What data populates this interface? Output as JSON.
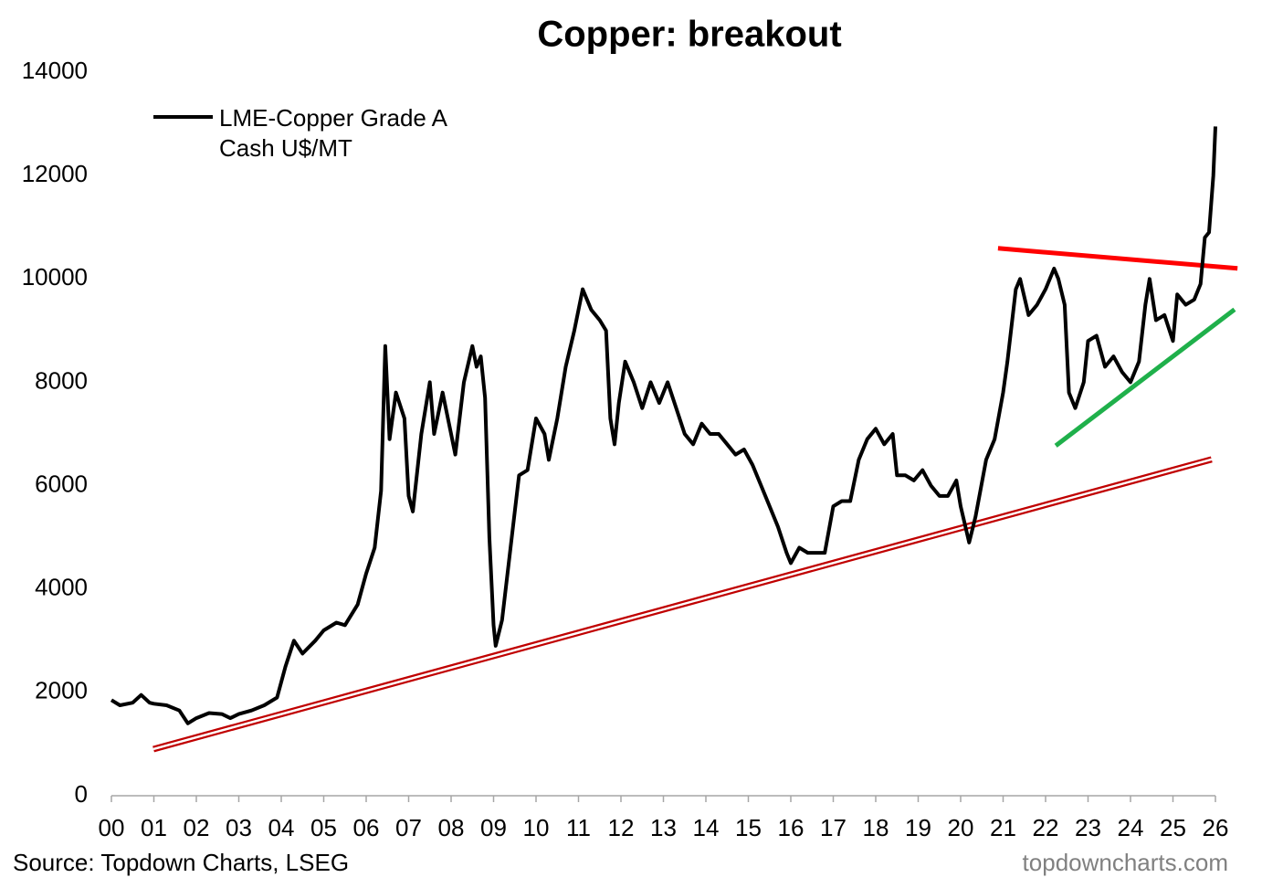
{
  "chart_data": {
    "type": "line",
    "title": "Copper: breakout",
    "source": "Source: Topdown Charts, LSEG",
    "watermark": "topdowncharts.com",
    "xlim": [
      0,
      26
    ],
    "xticks": [
      {
        "value": 0,
        "label": "00"
      },
      {
        "value": 1,
        "label": "01"
      },
      {
        "value": 2,
        "label": "02"
      },
      {
        "value": 3,
        "label": "03"
      },
      {
        "value": 4,
        "label": "04"
      },
      {
        "value": 5,
        "label": "05"
      },
      {
        "value": 6,
        "label": "06"
      },
      {
        "value": 7,
        "label": "07"
      },
      {
        "value": 8,
        "label": "08"
      },
      {
        "value": 9,
        "label": "09"
      },
      10,
      11,
      12,
      13,
      14,
      15,
      16,
      17,
      18,
      19,
      20,
      21,
      22,
      23,
      24,
      25,
      26
    ],
    "ylim": [
      0,
      14000
    ],
    "yticks": [
      0,
      2000,
      4000,
      6000,
      8000,
      10000,
      12000,
      14000
    ],
    "x": [
      0.0,
      0.2,
      0.5,
      0.7,
      0.9,
      1.0,
      1.3,
      1.6,
      1.8,
      2.0,
      2.3,
      2.6,
      2.8,
      3.0,
      3.3,
      3.6,
      3.9,
      4.1,
      4.3,
      4.5,
      4.8,
      5.0,
      5.3,
      5.5,
      5.8,
      6.0,
      6.2,
      6.35,
      6.45,
      6.55,
      6.7,
      6.9,
      7.0,
      7.1,
      7.3,
      7.5,
      7.6,
      7.8,
      8.0,
      8.1,
      8.3,
      8.5,
      8.6,
      8.7,
      8.8,
      8.9,
      9.0,
      9.05,
      9.2,
      9.4,
      9.6,
      9.8,
      10.0,
      10.2,
      10.3,
      10.5,
      10.7,
      10.9,
      11.1,
      11.3,
      11.5,
      11.65,
      11.75,
      11.85,
      11.95,
      12.1,
      12.3,
      12.5,
      12.7,
      12.9,
      13.1,
      13.3,
      13.5,
      13.7,
      13.9,
      14.1,
      14.3,
      14.5,
      14.7,
      14.9,
      15.1,
      15.3,
      15.5,
      15.7,
      15.9,
      16.0,
      16.2,
      16.4,
      16.6,
      16.8,
      17.0,
      17.2,
      17.4,
      17.6,
      17.8,
      18.0,
      18.2,
      18.4,
      18.5,
      18.7,
      18.9,
      19.1,
      19.3,
      19.5,
      19.7,
      19.9,
      20.0,
      20.2,
      20.35,
      20.6,
      20.8,
      21.0,
      21.1,
      21.3,
      21.4,
      21.6,
      21.8,
      22.0,
      22.2,
      22.3,
      22.45,
      22.55,
      22.7,
      22.9,
      23.0,
      23.2,
      23.4,
      23.6,
      23.8,
      24.0,
      24.2,
      24.35,
      24.45,
      24.6,
      24.8,
      25.0,
      25.1,
      25.3,
      25.5,
      25.65,
      25.75,
      25.85,
      25.95,
      26.0
    ],
    "series": [
      {
        "name": "LME-Copper Grade A Cash U$/MT",
        "color": "#000000",
        "values": [
          1850,
          1750,
          1800,
          1950,
          1800,
          1780,
          1750,
          1650,
          1400,
          1500,
          1600,
          1580,
          1500,
          1580,
          1650,
          1750,
          1900,
          2500,
          3000,
          2750,
          3000,
          3200,
          3350,
          3300,
          3700,
          4300,
          4800,
          5900,
          8700,
          6900,
          7800,
          7300,
          5800,
          5500,
          7000,
          8000,
          7000,
          7800,
          7000,
          6600,
          8000,
          8700,
          8300,
          8500,
          7700,
          5000,
          3300,
          2900,
          3400,
          4800,
          6200,
          6300,
          7300,
          7000,
          6500,
          7300,
          8300,
          9000,
          9800,
          9400,
          9200,
          9000,
          7300,
          6800,
          7600,
          8400,
          8000,
          7500,
          8000,
          7600,
          8000,
          7500,
          7000,
          6800,
          7200,
          7000,
          7000,
          6800,
          6600,
          6700,
          6400,
          6000,
          5600,
          5200,
          4700,
          4500,
          4800,
          4700,
          4700,
          4700,
          5600,
          5700,
          5700,
          6500,
          6900,
          7100,
          6800,
          7000,
          6200,
          6200,
          6100,
          6300,
          6000,
          5800,
          5800,
          6100,
          5600,
          4900,
          5400,
          6500,
          6900,
          7800,
          8400,
          9800,
          10000,
          9300,
          9500,
          9800,
          10200,
          10000,
          9500,
          7800,
          7500,
          8000,
          8800,
          8900,
          8300,
          8500,
          8200,
          8000,
          8400,
          9500,
          10000,
          9200,
          9300,
          8800,
          9700,
          9500,
          9600,
          9900,
          10800,
          10900,
          12000,
          12950
        ]
      }
    ],
    "trendlines": [
      {
        "color": "#ff0000",
        "style": "solid",
        "x": [
          20.88,
          26.52
        ],
        "y": [
          10592,
          10203
        ]
      },
      {
        "color": "#1fb04b",
        "style": "solid",
        "x": [
          22.24,
          26.45
        ],
        "y": [
          6773,
          9408
        ]
      },
      {
        "color": "#c00000",
        "style": "double",
        "x": [
          0.99,
          25.91
        ],
        "y": [
          902,
          6508
        ]
      }
    ]
  }
}
